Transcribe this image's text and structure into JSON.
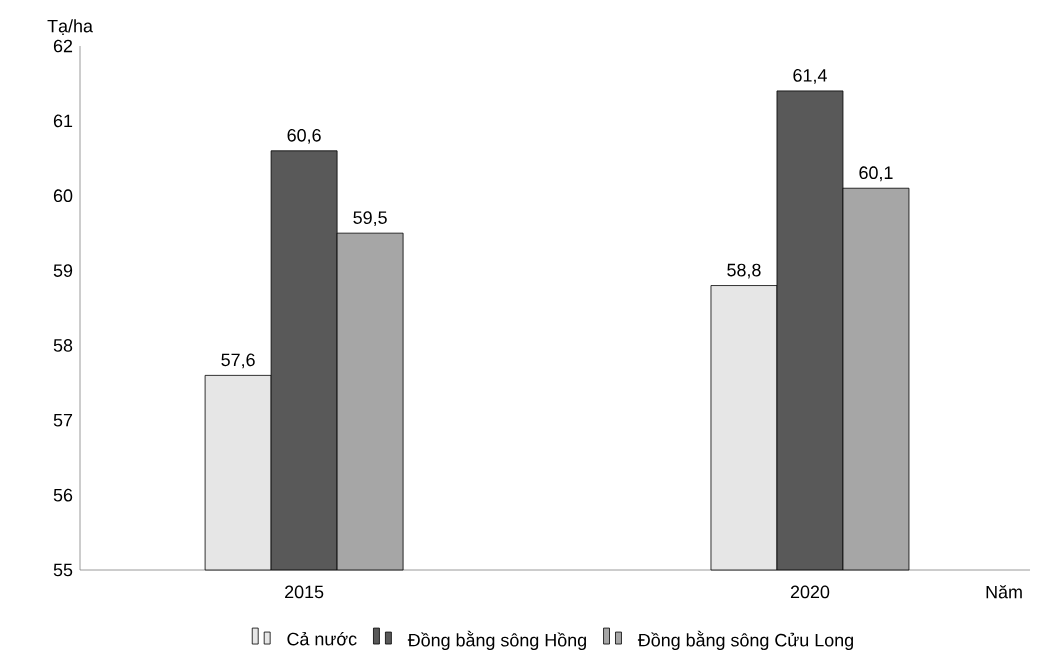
{
  "chart_data": {
    "type": "bar",
    "ylabel": "Tạ/ha",
    "xlabel": "Năm",
    "categories": [
      "2015",
      "2020"
    ],
    "series": [
      {
        "name": "Cả nước",
        "color": "#e6e6e6",
        "values": [
          57.6,
          58.8
        ],
        "value_labels": [
          "57,6",
          "58,8"
        ]
      },
      {
        "name": "Đồng bằng sông Hồng",
        "color": "#595959",
        "values": [
          60.6,
          61.4
        ],
        "value_labels": [
          "60,6",
          "61,4"
        ]
      },
      {
        "name": "Đồng bằng sông Cửu Long",
        "color": "#a6a6a6",
        "values": [
          59.5,
          60.1
        ],
        "value_labels": [
          "59,5",
          "60,1"
        ]
      }
    ],
    "ylim": [
      55,
      62
    ],
    "yticks": [
      55,
      56,
      57,
      58,
      59,
      60,
      61,
      62
    ],
    "grid": false,
    "legend": "bottom"
  }
}
